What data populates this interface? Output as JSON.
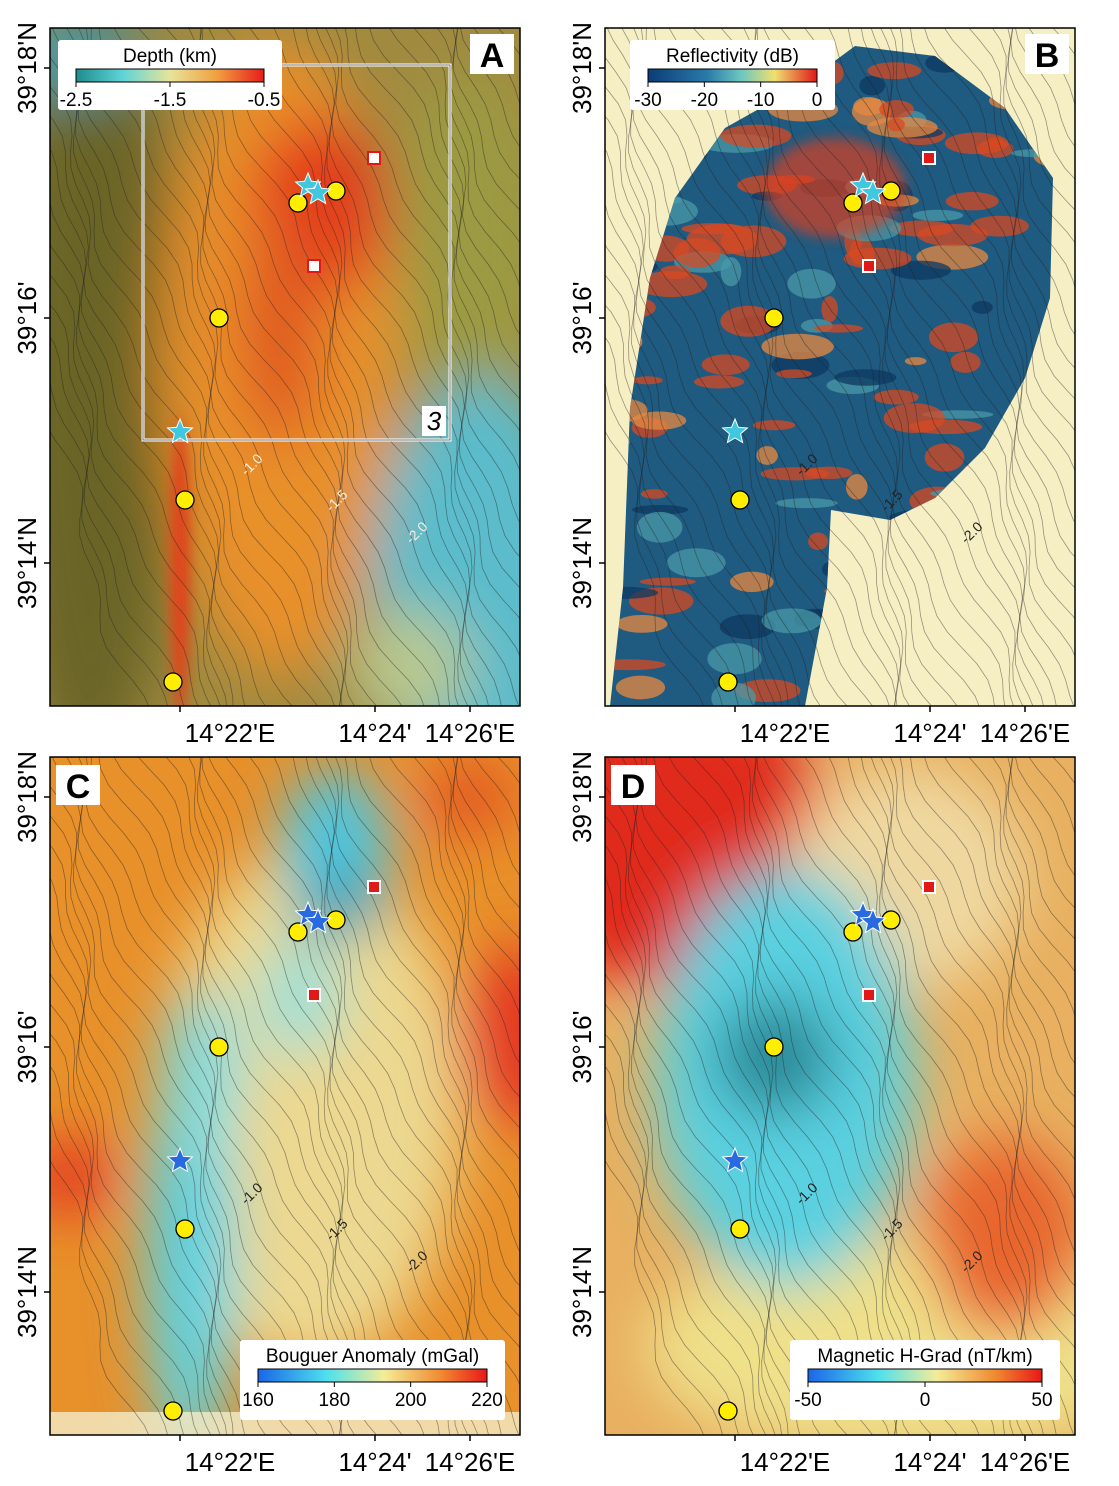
{
  "panels": [
    {
      "letter": "A",
      "colorbar": {
        "title": "Depth (km)",
        "ticks": [
          -2.5,
          -1.5,
          -0.5
        ]
      },
      "contour_labels": [
        "-1.0",
        "-1.5",
        "-2.0"
      ],
      "box_label": "3"
    },
    {
      "letter": "B",
      "colorbar": {
        "title": "Reflectivity (dB)",
        "ticks": [
          -30,
          -20,
          -10,
          0
        ]
      },
      "contour_labels": [
        "-1.0",
        "-1.5",
        "-2.0"
      ]
    },
    {
      "letter": "C",
      "colorbar": {
        "title": "Bouguer Anomaly (mGal)",
        "ticks": [
          160,
          180,
          200,
          220
        ]
      },
      "contour_labels": [
        "-1.0",
        "-1.5",
        "-2.0"
      ]
    },
    {
      "letter": "D",
      "colorbar": {
        "title": "Magnetic H-Grad (nT/km)",
        "ticks": [
          -50,
          0,
          50
        ]
      },
      "contour_labels": [
        "-1.0",
        "-1.5",
        "-2.0"
      ]
    }
  ],
  "y_axis_labels": [
    "39°18'N",
    "39°16'",
    "39°14'N"
  ],
  "x_axis_labels": [
    "14°22'E",
    "14°24'",
    "14°26'E"
  ]
}
